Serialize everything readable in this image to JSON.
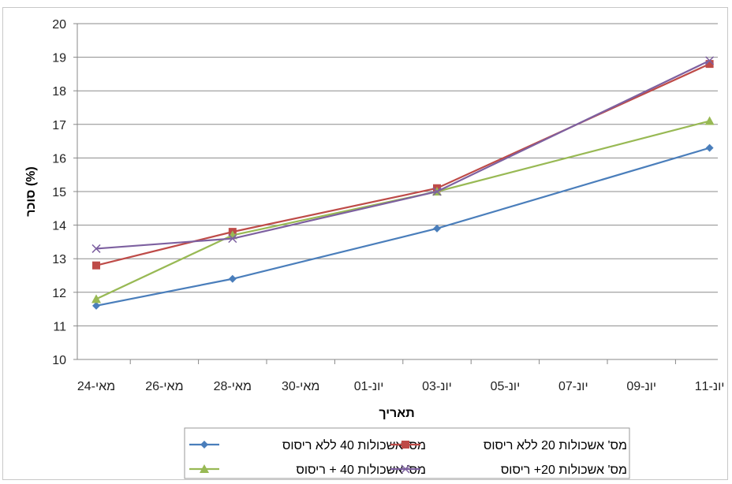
{
  "chart_data": {
    "type": "line",
    "xlabel": "תאריך",
    "ylabel": "סוכר (%)",
    "ylim": [
      10,
      20
    ],
    "yticks": [
      10,
      11,
      12,
      13,
      14,
      15,
      16,
      17,
      18,
      19,
      20
    ],
    "x_tick_labels": [
      "24-מאי",
      "26-מאי",
      "28-מאי",
      "30-מאי",
      "01-יונ",
      "03-יונ",
      "05-יונ",
      "07-יונ",
      "09-יונ",
      "11-יונ"
    ],
    "x": [
      "24-מאי",
      "28-מאי",
      "03-יונ",
      "11-יונ"
    ],
    "x_day_index": [
      0,
      4,
      10,
      18
    ],
    "grid": "horizontal",
    "legend_position": "bottom",
    "series": [
      {
        "name": "מס' אשכולות 40 ללא ריסוס",
        "color": "#4a7ebb",
        "marker": "diamond",
        "values": [
          11.6,
          12.4,
          13.9,
          16.3
        ]
      },
      {
        "name": "מס' אשכולות 20 ללא ריסוס",
        "color": "#be4b48",
        "marker": "square",
        "values": [
          12.8,
          13.8,
          15.1,
          18.8
        ]
      },
      {
        "name": "מס' אשכולות 40 + ריסוס",
        "color": "#98b954",
        "marker": "triangle",
        "values": [
          11.8,
          13.7,
          15.0,
          17.1
        ]
      },
      {
        "name": "מס' אשכולות 20+ ריסוס",
        "color": "#7d60a0",
        "marker": "x",
        "values": [
          13.3,
          13.6,
          15.0,
          18.9
        ]
      }
    ]
  }
}
